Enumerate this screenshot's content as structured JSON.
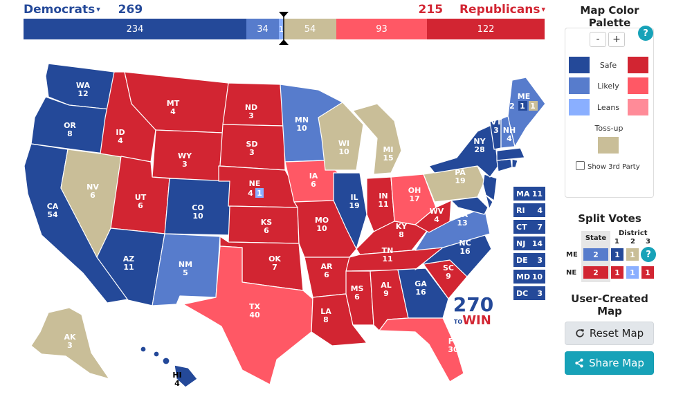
{
  "header": {
    "dem_label": "Democrats",
    "dem_total": "269",
    "rep_label": "Republicans",
    "rep_total": "215",
    "caret": "▾"
  },
  "totals_bar": {
    "safe_d": "234",
    "likely_d": "34",
    "leans_d": "1",
    "tossup": "54",
    "leans_r": "",
    "likely_r": "93",
    "safe_r": "122"
  },
  "colors": {
    "safe_d": "#244999",
    "likely_d": "#577ccc",
    "leans_d": "#8aafff",
    "tossup": "#c9be98",
    "leans_r": "#ff8b98",
    "likely_r": "#ff5865",
    "safe_r": "#d22532"
  },
  "states": {
    "WA": "WA",
    "WA_ev": "12",
    "OR": "OR",
    "OR_ev": "8",
    "CA": "CA",
    "CA_ev": "54",
    "NV": "NV",
    "NV_ev": "6",
    "ID": "ID",
    "ID_ev": "4",
    "MT": "MT",
    "MT_ev": "4",
    "WY": "WY",
    "WY_ev": "3",
    "UT": "UT",
    "UT_ev": "6",
    "CO": "CO",
    "CO_ev": "10",
    "AZ": "AZ",
    "AZ_ev": "11",
    "NM": "NM",
    "NM_ev": "5",
    "ND": "ND",
    "ND_ev": "3",
    "SD": "SD",
    "SD_ev": "3",
    "NE": "NE",
    "NE_ev": "4",
    "NE_cd": "1",
    "KS": "KS",
    "KS_ev": "6",
    "OK": "OK",
    "OK_ev": "7",
    "TX": "TX",
    "TX_ev": "40",
    "MN": "MN",
    "MN_ev": "10",
    "IA": "IA",
    "IA_ev": "6",
    "MO": "MO",
    "MO_ev": "10",
    "AR": "AR",
    "AR_ev": "6",
    "LA": "LA",
    "LA_ev": "8",
    "WI": "WI",
    "WI_ev": "10",
    "IL": "IL",
    "IL_ev": "19",
    "MI": "MI",
    "MI_ev": "15",
    "IN": "IN",
    "IN_ev": "11",
    "OH": "OH",
    "OH_ev": "17",
    "KY": "KY",
    "KY_ev": "8",
    "TN": "TN",
    "TN_ev": "11",
    "MS": "MS",
    "MS_ev": "6",
    "AL": "AL",
    "AL_ev": "9",
    "GA": "GA",
    "GA_ev": "16",
    "FL": "FL",
    "FL_ev": "30",
    "SC": "SC",
    "SC_ev": "9",
    "NC": "NC",
    "NC_ev": "16",
    "VA": "VA",
    "VA_ev": "13",
    "WV": "WV",
    "WV_ev": "4",
    "PA": "PA",
    "PA_ev": "19",
    "NY": "NY",
    "NY_ev": "28",
    "VT": "VT",
    "VT_ev": "3",
    "NH": "NH",
    "NH_ev": "4",
    "ME": "ME",
    "ME_ev": "2",
    "ME_cd1": "1",
    "ME_cd2": "1",
    "AK": "AK",
    "AK_ev": "3",
    "HI": "HI",
    "HI_ev": "4"
  },
  "small_states": [
    {
      "abbr": "MA",
      "ev": "11"
    },
    {
      "abbr": "RI",
      "ev": "4"
    },
    {
      "abbr": "CT",
      "ev": "7"
    },
    {
      "abbr": "NJ",
      "ev": "14"
    },
    {
      "abbr": "DE",
      "ev": "3"
    },
    {
      "abbr": "MD",
      "ev": "10"
    },
    {
      "abbr": "DC",
      "ev": "3"
    }
  ],
  "logo": {
    "top": "270",
    "bottom_left": "TO",
    "bottom_right": "WIN"
  },
  "palette": {
    "title": "Map Color Palette",
    "minus": "-",
    "plus": "+",
    "help": "?",
    "safe": "Safe",
    "likely": "Likely",
    "leans": "Leans",
    "tossup": "Toss-up",
    "show_third": "Show 3rd Party"
  },
  "split_votes": {
    "title": "Split Votes",
    "state_hdr": "State",
    "district_hdr": "District",
    "d1": "1",
    "d2": "2",
    "d3": "3",
    "me": "ME",
    "ne": "NE",
    "me_state": "2",
    "me_1": "1",
    "me_2": "1",
    "ne_state": "2",
    "ne_1": "1",
    "ne_2": "1",
    "ne_3": "1",
    "help": "?"
  },
  "user_map": {
    "title": "User-Created Map",
    "reset": "Reset Map",
    "share": "Share Map"
  }
}
